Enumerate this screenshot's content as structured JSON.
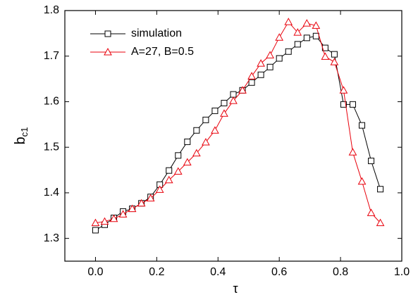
{
  "chart_data": {
    "type": "line",
    "x_label": "τ",
    "y_label": "b",
    "y_label_subscript": "c1",
    "x": [
      0,
      0.03,
      0.06,
      0.09,
      0.12,
      0.15,
      0.18,
      0.21,
      0.24,
      0.27,
      0.3,
      0.33,
      0.36,
      0.39,
      0.42,
      0.45,
      0.48,
      0.51,
      0.54,
      0.57,
      0.6,
      0.63,
      0.66,
      0.69,
      0.72,
      0.75,
      0.78,
      0.81,
      0.84,
      0.87,
      0.9,
      0.93
    ],
    "series": [
      {
        "name": "simulation",
        "color": "#000000",
        "marker": "square",
        "values": [
          1.318,
          1.33,
          1.345,
          1.359,
          1.365,
          1.377,
          1.391,
          1.418,
          1.449,
          1.482,
          1.512,
          1.537,
          1.56,
          1.58,
          1.597,
          1.616,
          1.625,
          1.642,
          1.659,
          1.676,
          1.695,
          1.71,
          1.726,
          1.74,
          1.744,
          1.718,
          1.704,
          1.594,
          1.594,
          1.548,
          1.47,
          1.408
        ]
      },
      {
        "name": "A=27, B=0.5",
        "color": "#e8000b",
        "marker": "triangle",
        "values": [
          1.334,
          1.337,
          1.343,
          1.353,
          1.365,
          1.377,
          1.388,
          1.407,
          1.428,
          1.447,
          1.467,
          1.487,
          1.511,
          1.537,
          1.574,
          1.602,
          1.625,
          1.656,
          1.684,
          1.702,
          1.741,
          1.775,
          1.752,
          1.772,
          1.767,
          1.699,
          1.687,
          1.625,
          1.489,
          1.425,
          1.356,
          1.334
        ]
      }
    ],
    "xlim": [
      -0.1,
      1.0
    ],
    "xticks": [
      {
        "value": 0,
        "label": "0.0"
      },
      0.2,
      0.4,
      0.6,
      0.8,
      {
        "value": 1,
        "label": "1.0"
      }
    ],
    "ylim": [
      1.25,
      1.8
    ],
    "yticks": [
      1.3,
      1.4,
      1.5,
      1.6,
      1.7,
      1.8
    ],
    "legend": "upper-left"
  }
}
